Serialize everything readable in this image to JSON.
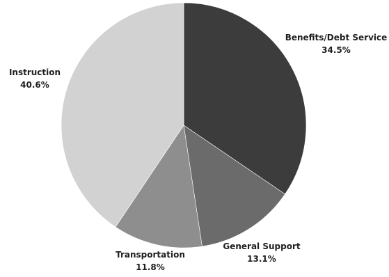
{
  "chart_data": {
    "type": "pie",
    "title": "",
    "slices": [
      {
        "label": "Benefits/Debt Service",
        "value": 34.5,
        "value_label": "34.5%",
        "color": "#3c3c3c"
      },
      {
        "label": "General Support",
        "value": 13.1,
        "value_label": "13.1%",
        "color": "#6b6b6b"
      },
      {
        "label": "Transportation",
        "value": 11.8,
        "value_label": "11.8%",
        "color": "#8e8e8e"
      },
      {
        "label": "Instruction",
        "value": 40.6,
        "value_label": "40.6%",
        "color": "#d2d2d2"
      }
    ],
    "start": "top",
    "direction": "clockwise"
  }
}
